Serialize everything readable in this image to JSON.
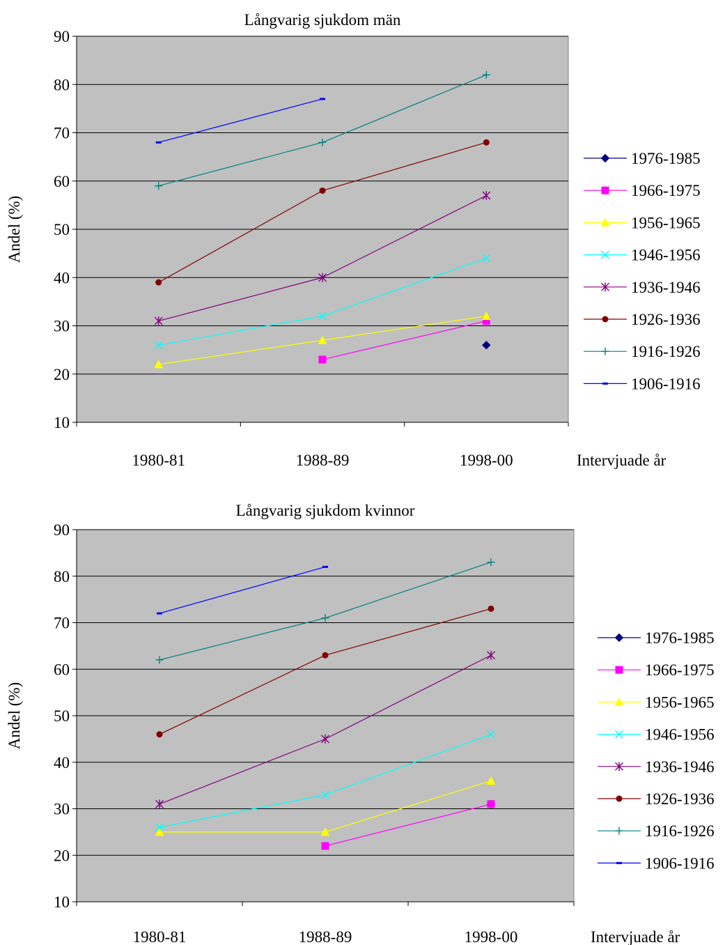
{
  "chart_data": [
    {
      "type": "line",
      "title": "Långvarig sjukdom män",
      "xlabel": "Intervjuade år",
      "ylabel": "Andel (%)",
      "categories": [
        "1980-81",
        "1988-89",
        "1998-00"
      ],
      "ylim": [
        10,
        90
      ],
      "yticks": [
        10,
        20,
        30,
        40,
        50,
        60,
        70,
        80,
        90
      ],
      "grid": "horizontal",
      "plot_background": "#c0c0c0",
      "legend_position": "right",
      "series": [
        {
          "name": "1976-1985",
          "color": "#000080",
          "marker": "diamond",
          "values": [
            null,
            null,
            26
          ]
        },
        {
          "name": "1966-1975",
          "color": "#ff00ff",
          "marker": "square",
          "values": [
            null,
            23,
            31
          ]
        },
        {
          "name": "1956-1965",
          "color": "#ffff00",
          "marker": "triangle",
          "values": [
            22,
            27,
            32
          ]
        },
        {
          "name": "1946-1956",
          "color": "#00ffff",
          "marker": "x",
          "values": [
            26,
            32,
            44
          ]
        },
        {
          "name": "1936-1946",
          "color": "#800080",
          "marker": "star",
          "values": [
            31,
            40,
            57
          ]
        },
        {
          "name": "1926-1936",
          "color": "#800000",
          "marker": "circle",
          "values": [
            39,
            58,
            68
          ]
        },
        {
          "name": "1916-1926",
          "color": "#008080",
          "marker": "plus",
          "values": [
            59,
            68,
            82
          ]
        },
        {
          "name": "1906-1916",
          "color": "#0000ff",
          "marker": "dash",
          "values": [
            68,
            77,
            null
          ]
        }
      ]
    },
    {
      "type": "line",
      "title": "Långvarig sjukdom kvinnor",
      "xlabel": "Intervjuade år",
      "ylabel": "Andel (%)",
      "categories": [
        "1980-81",
        "1988-89",
        "1998-00"
      ],
      "ylim": [
        10,
        90
      ],
      "yticks": [
        10,
        20,
        30,
        40,
        50,
        60,
        70,
        80,
        90
      ],
      "grid": "horizontal",
      "plot_background": "#c0c0c0",
      "legend_position": "right",
      "series": [
        {
          "name": "1976-1985",
          "color": "#000080",
          "marker": "diamond",
          "values": [
            null,
            null,
            31
          ]
        },
        {
          "name": "1966-1975",
          "color": "#ff00ff",
          "marker": "square",
          "values": [
            null,
            22,
            31
          ]
        },
        {
          "name": "1956-1965",
          "color": "#ffff00",
          "marker": "triangle",
          "values": [
            25,
            25,
            36
          ]
        },
        {
          "name": "1946-1956",
          "color": "#00ffff",
          "marker": "x",
          "values": [
            26,
            33,
            46
          ]
        },
        {
          "name": "1936-1946",
          "color": "#800080",
          "marker": "star",
          "values": [
            31,
            45,
            63
          ]
        },
        {
          "name": "1926-1936",
          "color": "#800000",
          "marker": "circle",
          "values": [
            46,
            63,
            73
          ]
        },
        {
          "name": "1916-1926",
          "color": "#008080",
          "marker": "plus",
          "values": [
            62,
            71,
            83
          ]
        },
        {
          "name": "1906-1916",
          "color": "#0000ff",
          "marker": "dash",
          "values": [
            72,
            82,
            null
          ]
        }
      ]
    }
  ]
}
